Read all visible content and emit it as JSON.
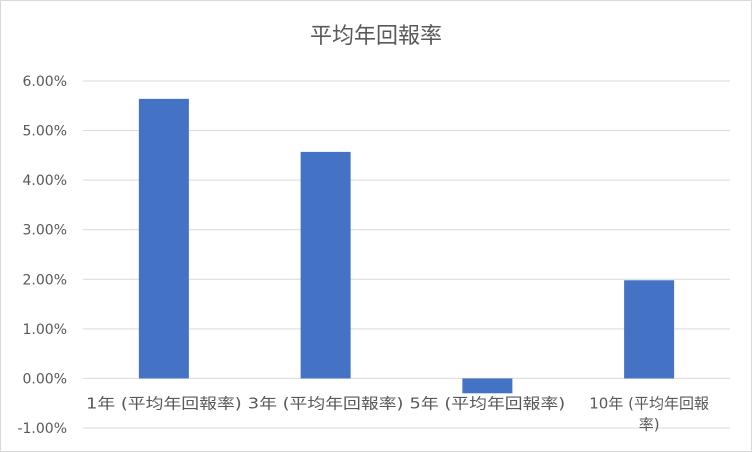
{
  "chart_data": {
    "type": "bar",
    "title": "平均年回報率",
    "categories": [
      "1年 (平均年回報率)",
      "3年 (平均年回報率)",
      "5年 (平均年回報率)",
      "10年 (平均年回報率)"
    ],
    "values": [
      5.64,
      4.57,
      -0.3,
      1.98
    ],
    "value_unit": "%",
    "ylim": [
      -1,
      6
    ],
    "yticks": [
      "-1.00%",
      "0.00%",
      "1.00%",
      "2.00%",
      "3.00%",
      "4.00%",
      "5.00%",
      "6.00%"
    ],
    "grid": true,
    "legend": "none",
    "bar_color": "#4472c4"
  }
}
